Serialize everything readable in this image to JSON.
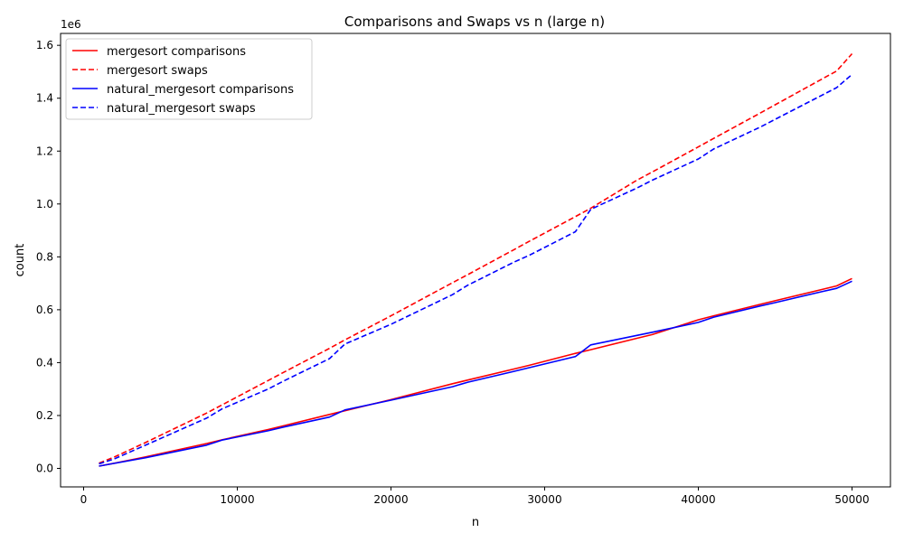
{
  "chart_data": {
    "type": "line",
    "title": "Comparisons and Swaps vs n (large n)",
    "xlabel": "n",
    "ylabel": "count",
    "y_offset_label": "1e6",
    "xlim": [
      -1500,
      52500
    ],
    "ylim": [
      -70000,
      1645000
    ],
    "x_ticks": [
      0,
      10000,
      20000,
      30000,
      40000,
      50000
    ],
    "x_tick_labels": [
      "0",
      "10000",
      "20000",
      "30000",
      "40000",
      "50000"
    ],
    "y_ticks": [
      0,
      200000,
      400000,
      600000,
      800000,
      1000000,
      1200000,
      1400000,
      1600000
    ],
    "y_tick_labels": [
      "0.0",
      "0.2",
      "0.4",
      "0.6",
      "0.8",
      "1.0",
      "1.2",
      "1.4",
      "1.6"
    ],
    "grid": false,
    "legend_position": "top-left",
    "x": [
      1000,
      2000,
      4000,
      8000,
      9000,
      12000,
      13000,
      16000,
      17000,
      20000,
      24000,
      25000,
      28000,
      29000,
      32000,
      33000,
      36000,
      37000,
      40000,
      41000,
      44000,
      45000,
      48000,
      49000,
      50000
    ],
    "series": [
      {
        "name": "mergesort comparisons",
        "color": "#ff0000",
        "dash": "solid",
        "values": [
          8700,
          19400,
          43000,
          94000,
          108000,
          147000,
          161000,
          204000,
          218000,
          260000,
          320000,
          334000,
          376000,
          390000,
          435000,
          449000,
          492000,
          506000,
          562000,
          577000,
          620000,
          634000,
          676000,
          690000,
          718000
        ]
      },
      {
        "name": "mergesort swaps",
        "color": "#ff0000",
        "dash": "dashed",
        "values": [
          20000,
          43000,
          97000,
          209000,
          240000,
          332000,
          363000,
          454000,
          486000,
          577000,
          702000,
          733000,
          827000,
          859000,
          952000,
          984000,
          1090000,
          1121000,
          1216000,
          1248000,
          1343000,
          1375000,
          1471000,
          1503000,
          1568000
        ]
      },
      {
        "name": "natural_mergesort comparisons",
        "color": "#0000ff",
        "dash": "solid",
        "values": [
          8600,
          19000,
          40000,
          88000,
          107000,
          142000,
          156000,
          194000,
          221000,
          258000,
          309000,
          326000,
          367000,
          381000,
          423000,
          467000,
          503000,
          515000,
          552000,
          572000,
          614000,
          627000,
          668000,
          681000,
          708000
        ]
      },
      {
        "name": "natural_mergesort swaps",
        "color": "#0000ff",
        "dash": "dashed",
        "values": [
          17000,
          36000,
          87000,
          190000,
          225000,
          300000,
          330000,
          415000,
          470000,
          545000,
          657000,
          693000,
          780000,
          806000,
          895000,
          980000,
          1060000,
          1090000,
          1170000,
          1208000,
          1290000,
          1320000,
          1410000,
          1440000,
          1490000
        ]
      }
    ]
  }
}
